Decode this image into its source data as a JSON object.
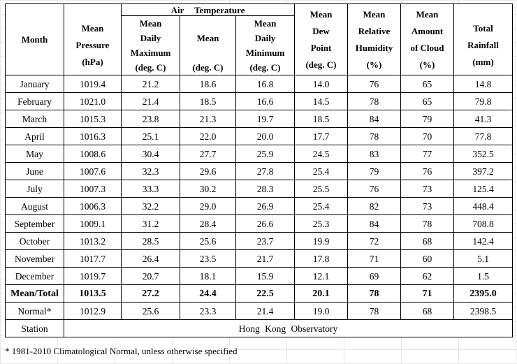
{
  "headers": {
    "month": "Month",
    "pressure": [
      "Mean",
      "Pressure",
      "(hPa)"
    ],
    "air_temperature": "Air Temperature",
    "max": [
      "Mean",
      "Daily",
      "Maximum",
      "(deg. C)"
    ],
    "mean": [
      "Mean",
      "(deg. C)"
    ],
    "min": [
      "Mean",
      "Daily",
      "Minimum",
      "(deg. C)"
    ],
    "dew": [
      "Mean",
      "Dew",
      "Point",
      "(deg. C)"
    ],
    "humidity": [
      "Mean",
      "Relative",
      "Humidity",
      "(%)"
    ],
    "cloud": [
      "Mean",
      "Amount",
      "of Cloud",
      "(%)"
    ],
    "rainfall": [
      "Total",
      "Rainfall",
      "(mm)"
    ]
  },
  "rows": [
    [
      "January",
      "1019.4",
      "21.2",
      "18.6",
      "16.8",
      "14.0",
      "76",
      "65",
      "14.8"
    ],
    [
      "February",
      "1021.0",
      "21.4",
      "18.5",
      "16.6",
      "14.5",
      "78",
      "65",
      "79.8"
    ],
    [
      "March",
      "1015.3",
      "23.8",
      "21.3",
      "19.7",
      "18.5",
      "84",
      "79",
      "41.3"
    ],
    [
      "April",
      "1016.3",
      "25.1",
      "22.0",
      "20.0",
      "17.7",
      "78",
      "70",
      "77.8"
    ],
    [
      "May",
      "1008.6",
      "30.4",
      "27.7",
      "25.9",
      "24.5",
      "83",
      "77",
      "352.5"
    ],
    [
      "June",
      "1007.6",
      "32.3",
      "29.6",
      "27.8",
      "25.4",
      "79",
      "76",
      "397.2"
    ],
    [
      "July",
      "1007.3",
      "33.3",
      "30.2",
      "28.3",
      "25.5",
      "76",
      "73",
      "125.4"
    ],
    [
      "August",
      "1006.3",
      "32.2",
      "29.0",
      "26.9",
      "25.4",
      "82",
      "73",
      "448.4"
    ],
    [
      "September",
      "1009.1",
      "31.2",
      "28.4",
      "26.6",
      "25.3",
      "84",
      "78",
      "708.8"
    ],
    [
      "October",
      "1013.2",
      "28.5",
      "25.6",
      "23.7",
      "19.9",
      "72",
      "68",
      "142.4"
    ],
    [
      "November",
      "1017.7",
      "26.4",
      "23.5",
      "21.7",
      "17.8",
      "71",
      "60",
      "5.1"
    ],
    [
      "December",
      "1019.7",
      "20.7",
      "18.1",
      "15.9",
      "12.1",
      "69",
      "62",
      "1.5"
    ]
  ],
  "total": [
    "Mean/Total",
    "1013.5",
    "27.2",
    "24.4",
    "22.5",
    "20.1",
    "78",
    "71",
    "2395.0"
  ],
  "normal": [
    "Normal*",
    "1012.9",
    "25.6",
    "23.3",
    "21.4",
    "19.0",
    "78",
    "68",
    "2398.5"
  ],
  "station": {
    "label": "Station",
    "value": "Hong Kong Observatory"
  },
  "footnote": "* 1981-2010 Climatological Normal, unless otherwise specified"
}
